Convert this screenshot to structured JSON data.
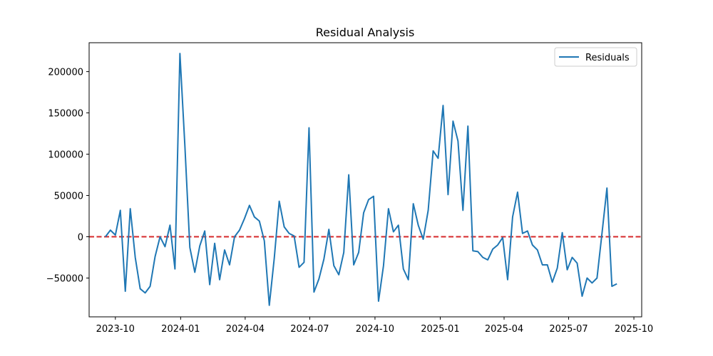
{
  "chart_data": {
    "type": "line",
    "title": "Residual Analysis",
    "xlabel": "",
    "ylabel": "",
    "x_type": "date",
    "xlim": [
      "2023-08-25",
      "2025-10-12"
    ],
    "ylim": [
      -97000,
      235000
    ],
    "x_ticks": [
      "2023-10-01",
      "2024-01-01",
      "2024-04-01",
      "2024-07-01",
      "2024-10-01",
      "2025-01-01",
      "2025-04-01",
      "2025-07-01",
      "2025-10-01"
    ],
    "x_tick_labels": [
      "2023-10",
      "2024-01",
      "2024-04",
      "2024-07",
      "2024-10",
      "2025-01",
      "2025-04",
      "2025-07",
      "2025-10"
    ],
    "y_ticks": [
      -50000,
      0,
      50000,
      100000,
      150000,
      200000
    ],
    "y_tick_labels": [
      "−50000",
      "0",
      "50000",
      "100000",
      "150000",
      "200000"
    ],
    "grid": false,
    "legend": {
      "position": "top-right",
      "entries": [
        "Residuals"
      ]
    },
    "reference_line": {
      "y": 0,
      "color": "#d62728",
      "style": "dashed"
    },
    "series": [
      {
        "name": "Residuals",
        "color": "#1f77b4",
        "x": [
          "2023-09-17",
          "2023-09-24",
          "2023-10-01",
          "2023-10-08",
          "2023-10-15",
          "2023-10-22",
          "2023-10-29",
          "2023-11-05",
          "2023-11-12",
          "2023-11-19",
          "2023-11-26",
          "2023-12-03",
          "2023-12-10",
          "2023-12-17",
          "2023-12-24",
          "2023-12-31",
          "2024-01-07",
          "2024-01-14",
          "2024-01-21",
          "2024-01-28",
          "2024-02-04",
          "2024-02-11",
          "2024-02-18",
          "2024-02-25",
          "2024-03-03",
          "2024-03-10",
          "2024-03-17",
          "2024-03-24",
          "2024-03-31",
          "2024-04-07",
          "2024-04-14",
          "2024-04-21",
          "2024-04-28",
          "2024-05-05",
          "2024-05-12",
          "2024-05-19",
          "2024-05-26",
          "2024-06-02",
          "2024-06-09",
          "2024-06-16",
          "2024-06-23",
          "2024-06-30",
          "2024-07-07",
          "2024-07-14",
          "2024-07-21",
          "2024-07-28",
          "2024-08-04",
          "2024-08-11",
          "2024-08-18",
          "2024-08-25",
          "2024-09-01",
          "2024-09-08",
          "2024-09-15",
          "2024-09-22",
          "2024-09-29",
          "2024-10-06",
          "2024-10-13",
          "2024-10-20",
          "2024-10-27",
          "2024-11-03",
          "2024-11-10",
          "2024-11-17",
          "2024-11-24",
          "2024-12-01",
          "2024-12-08",
          "2024-12-15",
          "2024-12-22",
          "2024-12-29",
          "2025-01-05",
          "2025-01-12",
          "2025-01-19",
          "2025-01-26",
          "2025-02-02",
          "2025-02-09",
          "2025-02-16",
          "2025-02-23",
          "2025-03-02",
          "2025-03-09",
          "2025-03-16",
          "2025-03-23",
          "2025-03-30",
          "2025-04-06",
          "2025-04-13",
          "2025-04-20",
          "2025-04-27",
          "2025-05-04",
          "2025-05-11",
          "2025-05-18",
          "2025-05-25",
          "2025-06-01",
          "2025-06-08",
          "2025-06-15",
          "2025-06-22",
          "2025-06-29",
          "2025-07-06",
          "2025-07-13",
          "2025-07-20",
          "2025-07-27",
          "2025-08-03",
          "2025-08-10",
          "2025-08-17",
          "2025-08-24",
          "2025-08-31",
          "2025-09-07"
        ],
        "values": [
          0,
          8000,
          2000,
          32000,
          -66000,
          34000,
          -25000,
          -63000,
          -68000,
          -60000,
          -24000,
          0,
          -12000,
          14000,
          -39000,
          222000,
          110000,
          -13000,
          -43000,
          -11000,
          7000,
          -58000,
          -8000,
          -52000,
          -16000,
          -34000,
          0,
          8000,
          22000,
          38000,
          24000,
          19000,
          -5000,
          -83000,
          -26000,
          43000,
          12000,
          4000,
          1000,
          -37000,
          -31000,
          132000,
          -67000,
          -51000,
          -27000,
          9000,
          -35000,
          -46000,
          -19000,
          75000,
          -34000,
          -19000,
          29000,
          45000,
          49000,
          -78000,
          -35000,
          34000,
          6000,
          14000,
          -39000,
          -52000,
          40000,
          14000,
          -3000,
          32000,
          104000,
          95000,
          159000,
          51000,
          140000,
          116000,
          32000,
          134000,
          -17000,
          -18000,
          -25000,
          -28000,
          -15000,
          -10000,
          -1000,
          -52000,
          24000,
          54000,
          4000,
          7000,
          -10000,
          -16000,
          -34000,
          -34000,
          -55000,
          -38000,
          5000,
          -40000,
          -25000,
          -32000,
          -72000,
          -50000,
          -56000,
          -50000,
          4000,
          59000,
          -60000,
          -57000
        ]
      }
    ]
  }
}
